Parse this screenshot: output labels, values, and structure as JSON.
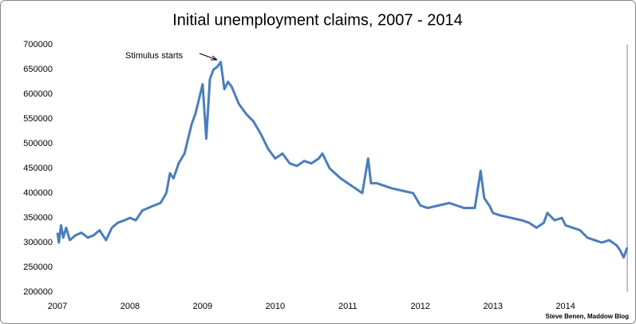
{
  "chart_data": {
    "type": "line",
    "title": "Initial unemployment claims, 2007 - 2014",
    "annotation": "Stimulus starts",
    "credit": "Steve Benen, Maddow Blog",
    "color": "#4a7ebb",
    "grid": true,
    "xlim": [
      2007,
      2014.85
    ],
    "xticks": [
      2007,
      2008,
      2009,
      2010,
      2011,
      2012,
      2013,
      2014
    ],
    "ylim": [
      200000,
      700000
    ],
    "yticks": [
      200000,
      250000,
      300000,
      350000,
      400000,
      450000,
      500000,
      550000,
      600000,
      650000,
      700000
    ],
    "x": [
      2007.0,
      2007.02,
      2007.05,
      2007.08,
      2007.12,
      2007.17,
      2007.25,
      2007.33,
      2007.42,
      2007.5,
      2007.58,
      2007.67,
      2007.75,
      2007.83,
      2007.92,
      2008.0,
      2008.08,
      2008.17,
      2008.25,
      2008.33,
      2008.42,
      2008.5,
      2008.55,
      2008.6,
      2008.67,
      2008.75,
      2008.8,
      2008.85,
      2008.9,
      2008.95,
      2009.0,
      2009.05,
      2009.1,
      2009.15,
      2009.2,
      2009.25,
      2009.3,
      2009.35,
      2009.4,
      2009.5,
      2009.6,
      2009.7,
      2009.8,
      2009.9,
      2010.0,
      2010.1,
      2010.2,
      2010.3,
      2010.4,
      2010.5,
      2010.6,
      2010.65,
      2010.75,
      2010.9,
      2011.0,
      2011.1,
      2011.2,
      2011.28,
      2011.32,
      2011.4,
      2011.5,
      2011.6,
      2011.75,
      2011.9,
      2012.0,
      2012.1,
      2012.25,
      2012.4,
      2012.5,
      2012.6,
      2012.75,
      2012.83,
      2012.88,
      2012.95,
      2013.0,
      2013.1,
      2013.25,
      2013.4,
      2013.5,
      2013.6,
      2013.7,
      2013.75,
      2013.85,
      2013.95,
      2014.0,
      2014.1,
      2014.2,
      2014.3,
      2014.4,
      2014.5,
      2014.6,
      2014.7,
      2014.75,
      2014.8,
      2014.85
    ],
    "values": [
      320000,
      300000,
      335000,
      310000,
      330000,
      305000,
      315000,
      320000,
      310000,
      315000,
      325000,
      305000,
      330000,
      340000,
      345000,
      350000,
      345000,
      365000,
      370000,
      375000,
      380000,
      400000,
      440000,
      430000,
      460000,
      480000,
      510000,
      540000,
      560000,
      590000,
      620000,
      510000,
      630000,
      650000,
      655000,
      665000,
      610000,
      625000,
      615000,
      580000,
      560000,
      545000,
      520000,
      490000,
      470000,
      480000,
      460000,
      455000,
      465000,
      460000,
      470000,
      480000,
      450000,
      430000,
      420000,
      410000,
      400000,
      470000,
      420000,
      420000,
      415000,
      410000,
      405000,
      400000,
      375000,
      370000,
      375000,
      380000,
      375000,
      370000,
      370000,
      445000,
      390000,
      375000,
      360000,
      355000,
      350000,
      345000,
      340000,
      330000,
      340000,
      360000,
      345000,
      350000,
      335000,
      330000,
      325000,
      310000,
      305000,
      300000,
      305000,
      295000,
      285000,
      270000,
      290000
    ]
  }
}
